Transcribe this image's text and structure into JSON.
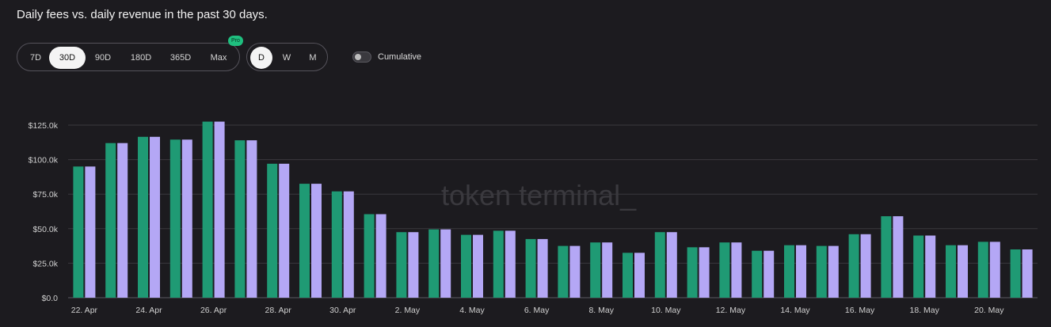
{
  "header": {
    "title": "Daily fees vs. daily revenue in the past 30 days."
  },
  "range_options": [
    {
      "label": "7D",
      "active": false
    },
    {
      "label": "30D",
      "active": true
    },
    {
      "label": "90D",
      "active": false
    },
    {
      "label": "180D",
      "active": false
    },
    {
      "label": "365D",
      "active": false
    },
    {
      "label": "Max",
      "active": false
    }
  ],
  "pro_badge": "Pro",
  "granularity_options": [
    {
      "label": "D",
      "active": true
    },
    {
      "label": "W",
      "active": false
    },
    {
      "label": "M",
      "active": false
    }
  ],
  "cumulative_toggle": {
    "label": "Cumulative",
    "on": false
  },
  "watermark": "token terminal_",
  "colors": {
    "fees": "#1f9a74",
    "revenue": "#b4a7f5",
    "background": "#1c1b1f",
    "grid": "#3a393e",
    "accent": "#1fbf7f"
  },
  "chart_data": {
    "type": "bar",
    "title": "Daily fees vs. daily revenue in the past 30 days.",
    "ylim": [
      0,
      125000
    ],
    "y_ticks": [
      {
        "value": 0,
        "label": "$0.0"
      },
      {
        "value": 25000,
        "label": "$25.0k"
      },
      {
        "value": 50000,
        "label": "$50.0k"
      },
      {
        "value": 75000,
        "label": "$75.0k"
      },
      {
        "value": 100000,
        "label": "$100.0k"
      },
      {
        "value": 125000,
        "label": "$125.0k"
      }
    ],
    "categories": [
      "22. Apr",
      "23. Apr",
      "24. Apr",
      "25. Apr",
      "26. Apr",
      "27. Apr",
      "28. Apr",
      "29. Apr",
      "30. Apr",
      "1. May",
      "2. May",
      "3. May",
      "4. May",
      "5. May",
      "6. May",
      "7. May",
      "8. May",
      "9. May",
      "10. May",
      "11. May",
      "12. May",
      "13. May",
      "14. May",
      "15. May",
      "16. May",
      "17. May",
      "18. May",
      "19. May",
      "20. May",
      "21. May"
    ],
    "x_tick_labels": [
      "22. Apr",
      "24. Apr",
      "26. Apr",
      "28. Apr",
      "30. Apr",
      "2. May",
      "4. May",
      "6. May",
      "8. May",
      "10. May",
      "12. May",
      "14. May",
      "16. May",
      "18. May",
      "20. May"
    ],
    "series": [
      {
        "name": "fees",
        "color": "#1f9a74",
        "values": [
          95000,
          112000,
          116500,
          114500,
          127500,
          114000,
          97000,
          82500,
          77000,
          60500,
          47500,
          49500,
          45500,
          48500,
          42500,
          37500,
          40000,
          32500,
          47500,
          36500,
          40000,
          34000,
          38000,
          37500,
          46000,
          59000,
          45000,
          38000,
          40500,
          35000
        ]
      },
      {
        "name": "revenue",
        "color": "#b4a7f5",
        "values": [
          95000,
          112000,
          116500,
          114500,
          127500,
          114000,
          97000,
          82500,
          77000,
          60500,
          47500,
          49500,
          45500,
          48500,
          42500,
          37500,
          40000,
          32500,
          47500,
          36500,
          40000,
          34000,
          38000,
          37500,
          46000,
          59000,
          45000,
          38000,
          40500,
          35000
        ]
      }
    ],
    "grid": true,
    "legend": "none"
  }
}
